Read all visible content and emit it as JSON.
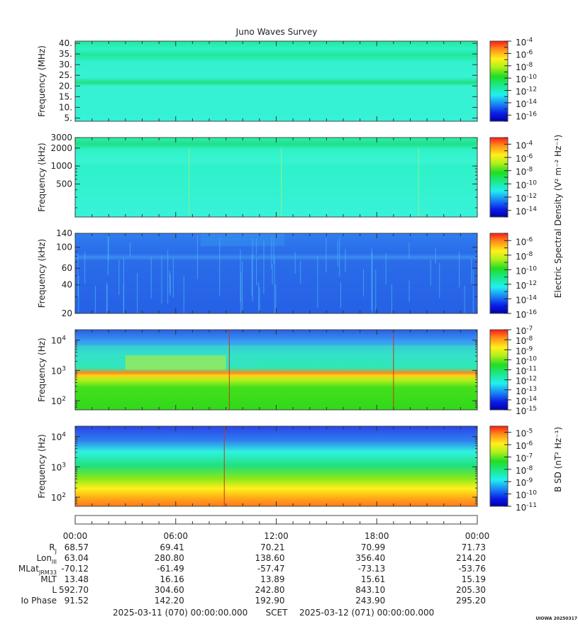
{
  "chart_data": {
    "type": "heatmap",
    "title": "Juno Waves Survey",
    "x_ticks": [
      "00:00",
      "06:00",
      "12:00",
      "18:00",
      "00:00"
    ],
    "x_range_hours": [
      0,
      24
    ],
    "panels": [
      {
        "name": "hfr-high",
        "ylabel": "Frequency (MHz)",
        "yscale": "linear",
        "ylim": [
          3.5,
          41
        ],
        "yticks": [
          5,
          10,
          15,
          20,
          25,
          30,
          35,
          40
        ],
        "ytick_labels": [
          "5.",
          "10.",
          "15.",
          "20.",
          "25.",
          "30.",
          "35.",
          "40."
        ],
        "cbar_ticks": [
          "10-4",
          "10-6",
          "10-8",
          "10-10",
          "10-12",
          "10-14",
          "10-16"
        ],
        "cbar_log": [
          -4,
          -6,
          -8,
          -10,
          -12,
          -14,
          -16
        ],
        "cbar_range": [
          -17,
          -4
        ]
      },
      {
        "name": "hfr-low",
        "ylabel": "Frequency (kHz)",
        "yscale": "log",
        "ylim": [
          140,
          3000
        ],
        "yticks": [
          500,
          1000,
          2000,
          3000
        ],
        "ytick_labels": [
          "500",
          "1000",
          "2000",
          "3000"
        ],
        "cbar_ticks": [
          "10-4",
          "10-6",
          "10-8",
          "10-10",
          "10-12",
          "10-14"
        ],
        "cbar_log": [
          -4,
          -6,
          -8,
          -10,
          -12,
          -14
        ],
        "cbar_range": [
          -15,
          -3
        ]
      },
      {
        "name": "lfr-high",
        "ylabel": "Frequency (kHz)",
        "yscale": "log",
        "ylim": [
          20,
          140
        ],
        "yticks": [
          20,
          40,
          60,
          100,
          140
        ],
        "ytick_labels": [
          "20",
          "40",
          "60",
          "100",
          "140"
        ],
        "cbar_ticks": [
          "10-6",
          "10-8",
          "10-10",
          "10-12",
          "10-14",
          "10-16"
        ],
        "cbar_log": [
          -6,
          -8,
          -10,
          -12,
          -14,
          -16
        ],
        "cbar_range": [
          -16,
          -5
        ]
      },
      {
        "name": "lfr-low",
        "ylabel": "Frequency (Hz)",
        "yscale": "log",
        "ylim": [
          50,
          22000
        ],
        "yticks": [
          100,
          1000,
          10000
        ],
        "ytick_labels": [
          "10^2",
          "10^3",
          "10^4"
        ],
        "cbar_ticks": [
          "10-7",
          "10-8",
          "10-9",
          "10-10",
          "10-11",
          "10-12",
          "10-13",
          "10-14",
          "10-15"
        ],
        "cbar_log": [
          -7,
          -8,
          -9,
          -10,
          -11,
          -12,
          -13,
          -14,
          -15
        ],
        "cbar_range": [
          -15,
          -7
        ]
      },
      {
        "name": "magnetic",
        "ylabel": "Frequency (Hz)",
        "yscale": "log",
        "ylim": [
          50,
          22000
        ],
        "yticks": [
          100,
          1000,
          10000
        ],
        "ytick_labels": [
          "10^2",
          "10^3",
          "10^4"
        ],
        "cbar_ticks": [
          "10-5",
          "10-6",
          "10-7",
          "10-8",
          "10-9",
          "10-10",
          "10-11"
        ],
        "cbar_log": [
          -5,
          -6,
          -7,
          -8,
          -9,
          -10,
          -11
        ],
        "cbar_range": [
          -11,
          -4.5
        ]
      }
    ],
    "cbar_labels": {
      "electric": "Electric Spectral Density (V^2 m^-2 Hz^-1)",
      "magnetic": "B SD (nT^2 Hz^-1)"
    },
    "ephemeris": {
      "rows": [
        {
          "label": "R",
          "sub": "J",
          "values": [
            "68.57",
            "69.41",
            "70.21",
            "70.99",
            "71.73"
          ]
        },
        {
          "label": "Lon",
          "sub": "III",
          "values": [
            "63.04",
            "280.80",
            "138.60",
            "356.40",
            "214.20"
          ]
        },
        {
          "label": "MLat",
          "sub": "JRM33",
          "values": [
            "-70.12",
            "-61.49",
            "-57.47",
            "-73.13",
            "-53.76"
          ]
        },
        {
          "label": "MLT",
          "sub": "",
          "values": [
            "13.48",
            "16.16",
            "13.89",
            "15.61",
            "15.19"
          ]
        },
        {
          "label": "L",
          "sub": "",
          "values": [
            "592.70",
            "304.60",
            "242.80",
            "843.10",
            "205.30"
          ]
        },
        {
          "label": "Io Phase",
          "sub": "",
          "values": [
            "91.52",
            "142.20",
            "192.90",
            "243.90",
            "295.20"
          ]
        }
      ]
    },
    "time_range": {
      "start": "2025-03-11 (070) 00:00:00.000",
      "frame": "SCET",
      "end": "2025-03-12 (071) 00:00:00.000"
    },
    "footer": "UIOWA 20250317"
  }
}
